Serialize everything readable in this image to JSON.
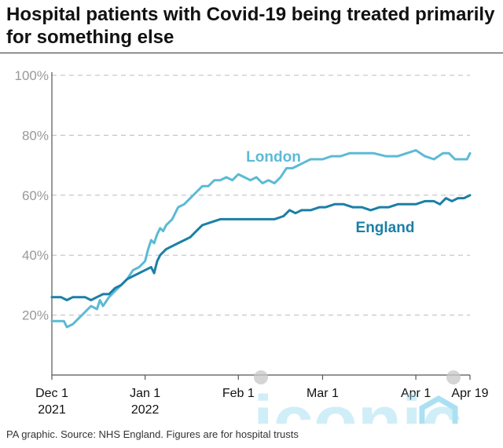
{
  "title": "Hospital patients with Covid-19 being treated primarily for something else",
  "source": "PA graphic. Source: NHS England. Figures are for hospital trusts",
  "watermark": "iconic",
  "colors": {
    "london": "#5bbad5",
    "england": "#1b7fa6",
    "grid": "#bbbbbb",
    "axis": "#555555",
    "tick_label": "#999999",
    "watermark": "#8fd6ee"
  },
  "chart_data": {
    "type": "line",
    "title": "Hospital patients with Covid-19 being treated primarily for something else",
    "xlabel": "",
    "ylabel": "",
    "x_range": [
      "2021-12-01",
      "2022-04-19"
    ],
    "ylim": [
      0,
      100
    ],
    "y_ticks": [
      20,
      40,
      60,
      80,
      100
    ],
    "y_tick_labels": [
      "20%",
      "40%",
      "60%",
      "80%",
      "100%"
    ],
    "x_ticks": [
      {
        "date": "2021-12-01",
        "label": "Dec 1",
        "sublabel": "2021"
      },
      {
        "date": "2022-01-01",
        "label": "Jan 1",
        "sublabel": "2022"
      },
      {
        "date": "2022-02-01",
        "label": "Feb 1",
        "sublabel": ""
      },
      {
        "date": "2022-03-01",
        "label": "Mar 1",
        "sublabel": ""
      },
      {
        "date": "2022-04-01",
        "label": "Apr 1",
        "sublabel": ""
      },
      {
        "date": "2022-04-19",
        "label": "Apr 19",
        "sublabel": ""
      }
    ],
    "grid": "horizontal dashed",
    "legend": "direct labels",
    "series": [
      {
        "name": "London",
        "color": "#5bbad5",
        "points": [
          [
            "2021-12-01",
            18
          ],
          [
            "2021-12-05",
            18
          ],
          [
            "2021-12-06",
            16
          ],
          [
            "2021-12-08",
            17
          ],
          [
            "2021-12-10",
            19
          ],
          [
            "2021-12-12",
            21
          ],
          [
            "2021-12-14",
            23
          ],
          [
            "2021-12-16",
            22
          ],
          [
            "2021-12-17",
            25
          ],
          [
            "2021-12-18",
            23
          ],
          [
            "2021-12-20",
            26
          ],
          [
            "2021-12-22",
            28
          ],
          [
            "2021-12-24",
            30
          ],
          [
            "2021-12-26",
            32
          ],
          [
            "2021-12-28",
            35
          ],
          [
            "2021-12-30",
            36
          ],
          [
            "2022-01-01",
            38
          ],
          [
            "2022-01-02",
            42
          ],
          [
            "2022-01-03",
            45
          ],
          [
            "2022-01-04",
            44
          ],
          [
            "2022-01-05",
            47
          ],
          [
            "2022-01-06",
            49
          ],
          [
            "2022-01-07",
            48
          ],
          [
            "2022-01-08",
            50
          ],
          [
            "2022-01-10",
            52
          ],
          [
            "2022-01-12",
            56
          ],
          [
            "2022-01-14",
            57
          ],
          [
            "2022-01-16",
            59
          ],
          [
            "2022-01-18",
            61
          ],
          [
            "2022-01-20",
            63
          ],
          [
            "2022-01-22",
            63
          ],
          [
            "2022-01-24",
            65
          ],
          [
            "2022-01-26",
            65
          ],
          [
            "2022-01-28",
            66
          ],
          [
            "2022-01-30",
            65
          ],
          [
            "2022-02-01",
            67
          ],
          [
            "2022-02-03",
            66
          ],
          [
            "2022-02-05",
            65
          ],
          [
            "2022-02-07",
            66
          ],
          [
            "2022-02-09",
            64
          ],
          [
            "2022-02-11",
            65
          ],
          [
            "2022-02-13",
            64
          ],
          [
            "2022-02-15",
            66
          ],
          [
            "2022-02-17",
            69
          ],
          [
            "2022-02-19",
            69
          ],
          [
            "2022-02-21",
            70
          ],
          [
            "2022-02-23",
            71
          ],
          [
            "2022-02-25",
            72
          ],
          [
            "2022-02-27",
            72
          ],
          [
            "2022-03-01",
            72
          ],
          [
            "2022-03-04",
            73
          ],
          [
            "2022-03-07",
            73
          ],
          [
            "2022-03-10",
            74
          ],
          [
            "2022-03-14",
            74
          ],
          [
            "2022-03-18",
            74
          ],
          [
            "2022-03-22",
            73
          ],
          [
            "2022-03-26",
            73
          ],
          [
            "2022-03-29",
            74
          ],
          [
            "2022-04-01",
            75
          ],
          [
            "2022-04-04",
            73
          ],
          [
            "2022-04-07",
            72
          ],
          [
            "2022-04-10",
            74
          ],
          [
            "2022-04-12",
            74
          ],
          [
            "2022-04-14",
            72
          ],
          [
            "2022-04-18",
            72
          ],
          [
            "2022-04-19",
            74
          ]
        ]
      },
      {
        "name": "England",
        "color": "#1b7fa6",
        "points": [
          [
            "2021-12-01",
            26
          ],
          [
            "2021-12-04",
            26
          ],
          [
            "2021-12-06",
            25
          ],
          [
            "2021-12-08",
            26
          ],
          [
            "2021-12-12",
            26
          ],
          [
            "2021-12-14",
            25
          ],
          [
            "2021-12-16",
            26
          ],
          [
            "2021-12-18",
            27
          ],
          [
            "2021-12-20",
            27
          ],
          [
            "2021-12-22",
            29
          ],
          [
            "2021-12-24",
            30
          ],
          [
            "2021-12-26",
            32
          ],
          [
            "2021-12-28",
            33
          ],
          [
            "2021-12-30",
            34
          ],
          [
            "2022-01-01",
            35
          ],
          [
            "2022-01-03",
            36
          ],
          [
            "2022-01-04",
            34
          ],
          [
            "2022-01-05",
            38
          ],
          [
            "2022-01-06",
            40
          ],
          [
            "2022-01-08",
            42
          ],
          [
            "2022-01-10",
            43
          ],
          [
            "2022-01-12",
            44
          ],
          [
            "2022-01-14",
            45
          ],
          [
            "2022-01-16",
            46
          ],
          [
            "2022-01-18",
            48
          ],
          [
            "2022-01-20",
            50
          ],
          [
            "2022-01-23",
            51
          ],
          [
            "2022-01-26",
            52
          ],
          [
            "2022-01-30",
            52
          ],
          [
            "2022-02-01",
            52
          ],
          [
            "2022-02-05",
            52
          ],
          [
            "2022-02-09",
            52
          ],
          [
            "2022-02-13",
            52
          ],
          [
            "2022-02-16",
            53
          ],
          [
            "2022-02-18",
            55
          ],
          [
            "2022-02-20",
            54
          ],
          [
            "2022-02-22",
            55
          ],
          [
            "2022-02-25",
            55
          ],
          [
            "2022-02-28",
            56
          ],
          [
            "2022-03-02",
            56
          ],
          [
            "2022-03-05",
            57
          ],
          [
            "2022-03-08",
            57
          ],
          [
            "2022-03-11",
            56
          ],
          [
            "2022-03-14",
            56
          ],
          [
            "2022-03-17",
            55
          ],
          [
            "2022-03-20",
            56
          ],
          [
            "2022-03-23",
            56
          ],
          [
            "2022-03-26",
            57
          ],
          [
            "2022-03-29",
            57
          ],
          [
            "2022-04-01",
            57
          ],
          [
            "2022-04-04",
            58
          ],
          [
            "2022-04-07",
            58
          ],
          [
            "2022-04-09",
            57
          ],
          [
            "2022-04-11",
            59
          ],
          [
            "2022-04-13",
            58
          ],
          [
            "2022-04-15",
            59
          ],
          [
            "2022-04-17",
            59
          ],
          [
            "2022-04-19",
            60
          ]
        ]
      }
    ]
  }
}
